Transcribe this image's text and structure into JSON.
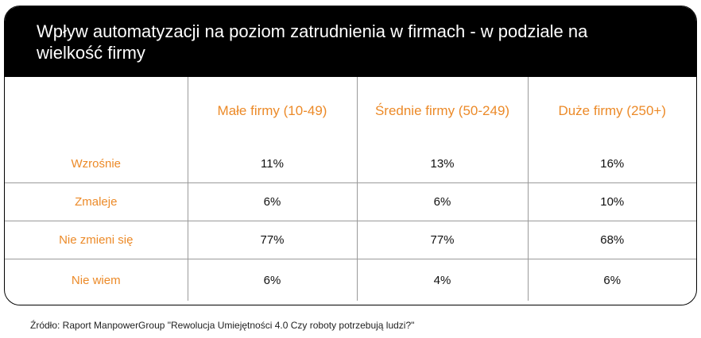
{
  "header": {
    "title": "Wpływ automatyzacji na poziom zatrudnienia w firmach - w podziale na wielkość firmy"
  },
  "source": "Źródło: Raport ManpowerGroup \"Rewolucja Umiejętności 4.0 Czy roboty potrzebują ludzi?\"",
  "colors": {
    "header_background": "#000000",
    "header_text": "#ffffff",
    "accent_orange": "#ec8a28",
    "grid_lines": "#9a9a9a"
  },
  "chart_data": {
    "type": "table",
    "title": "Wpływ automatyzacji na poziom zatrudnienia w firmach - w podziale na wielkość firmy",
    "columns": [
      "Małe firmy (10-49)",
      "Średnie firmy (50-249)",
      "Duże firmy (250+)"
    ],
    "rows": [
      {
        "label": "Wzrośnie",
        "values": [
          "11%",
          "13%",
          "16%"
        ]
      },
      {
        "label": "Zmaleje",
        "values": [
          "6%",
          "6%",
          "10%"
        ]
      },
      {
        "label": "Nie zmieni się",
        "values": [
          "77%",
          "77%",
          "68%"
        ]
      },
      {
        "label": "Nie wiem",
        "values": [
          "6%",
          "4%",
          "6%"
        ]
      }
    ]
  }
}
